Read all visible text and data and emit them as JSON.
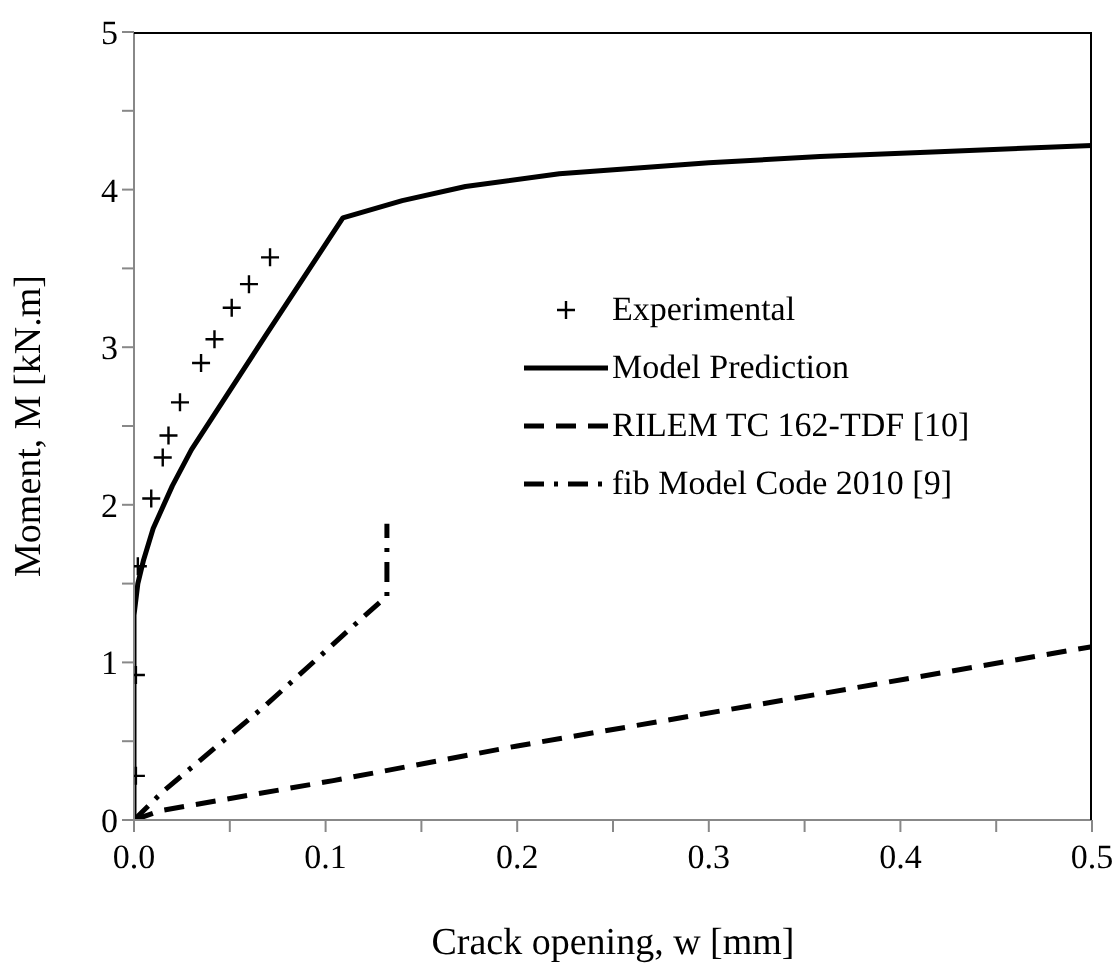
{
  "chart_data": {
    "type": "line",
    "xlabel": "Crack opening, w [mm]",
    "ylabel": "Moment, M [kN.m]",
    "xlim": [
      0,
      0.5
    ],
    "xticks": [
      {
        "value": 0,
        "label": "0.0"
      },
      {
        "value": 0.05,
        "label": null
      },
      {
        "value": 0.1,
        "label": "0.1"
      },
      {
        "value": 0.15,
        "label": null
      },
      {
        "value": 0.2,
        "label": "0.2"
      },
      {
        "value": 0.25,
        "label": null
      },
      {
        "value": 0.3,
        "label": "0.3"
      },
      {
        "value": 0.35,
        "label": null
      },
      {
        "value": 0.4,
        "label": "0.4"
      },
      {
        "value": 0.45,
        "label": null
      },
      {
        "value": 0.5,
        "label": "0.5"
      }
    ],
    "ylim": [
      0,
      5
    ],
    "yticks": [
      0,
      {
        "value": 0.5,
        "label": null
      },
      1,
      {
        "value": 1.5,
        "label": null
      },
      2,
      {
        "value": 2.5,
        "label": null
      },
      3,
      {
        "value": 3.5,
        "label": null
      },
      4,
      {
        "value": 4.5,
        "label": null
      },
      5
    ],
    "grid": false,
    "legend": "right",
    "series": [
      {
        "name": "Experimental",
        "type": "scatter",
        "marker": "cross",
        "color": "#000000",
        "x": [
          0.001,
          0.001,
          0.002,
          0.009,
          0.015,
          0.018,
          0.024,
          0.035,
          0.042,
          0.051,
          0.06,
          0.071
        ],
        "values": [
          0.28,
          0.92,
          1.61,
          2.04,
          2.3,
          2.44,
          2.65,
          2.9,
          3.05,
          3.25,
          3.4,
          3.57
        ]
      },
      {
        "name": "Model Prediction",
        "line_style": "solid",
        "color": "#000000",
        "x": [
          0,
          0,
          0.002,
          0.005,
          0.01,
          0.02,
          0.03,
          0.069,
          0.109,
          0.14,
          0.173,
          0.222,
          0.3,
          0.358,
          0.42,
          0.5
        ],
        "values": [
          0,
          1.3,
          1.5,
          1.65,
          1.85,
          2.12,
          2.35,
          3.08,
          3.82,
          3.93,
          4.02,
          4.1,
          4.17,
          4.21,
          4.24,
          4.28
        ]
      },
      {
        "name": "RILEM TC 162-TDF [10]",
        "line_style": "dashed",
        "color": "#000000",
        "x": [
          0,
          0.014,
          0.104,
          0.2,
          0.358,
          0.5
        ],
        "values": [
          0,
          0.06,
          0.25,
          0.47,
          0.8,
          1.1
        ]
      },
      {
        "name": "fib Model Code 2010 [9]",
        "line_style": "dashdot",
        "color": "#000000",
        "x": [
          0,
          0.015,
          0.068,
          0.118,
          0.132,
          0.132
        ],
        "values": [
          0,
          0.18,
          0.72,
          1.27,
          1.42,
          1.88
        ]
      }
    ]
  }
}
